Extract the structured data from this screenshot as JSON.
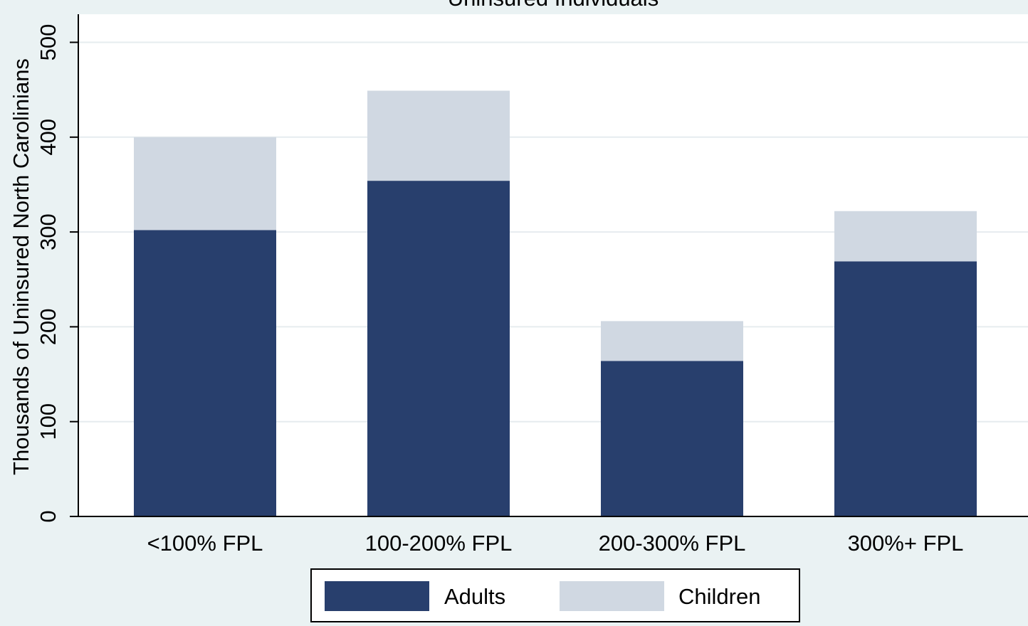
{
  "chart_data": {
    "type": "bar",
    "stacked": true,
    "title": "Uninsured Individuals",
    "ylabel": "Thousands of Uninsured North Carolinians",
    "xlabel": "",
    "categories": [
      "<100% FPL",
      "100-200% FPL",
      "200-300% FPL",
      "300%+ FPL"
    ],
    "series": [
      {
        "name": "Adults",
        "values": [
          302,
          354,
          164,
          269
        ],
        "color": "#283f6d"
      },
      {
        "name": "Children",
        "values": [
          98,
          95,
          42,
          53
        ],
        "color": "#d0d8e2"
      }
    ],
    "ylim": [
      0,
      530
    ],
    "yticks": [
      0,
      100,
      200,
      300,
      400,
      500
    ],
    "grid": true,
    "legend_position": "bottom"
  }
}
